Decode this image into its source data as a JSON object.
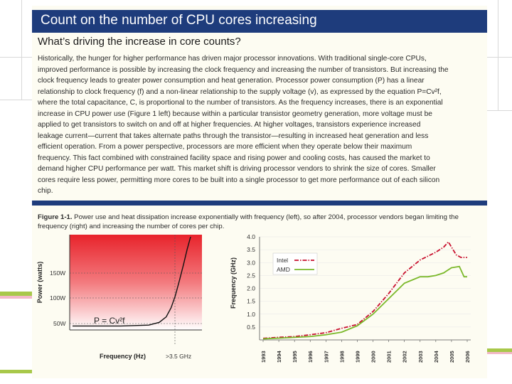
{
  "document": {
    "title": "Count on the number of CPU cores increasing",
    "subtitle": "What’s driving the increase in core counts?",
    "paragraph_lines": [
      "Historically, the hunger for higher performance has driven major processor innovations. With traditional single-core CPUs,",
      "improved performance is possible by increasing the clock frequency and increasing the number of transistors. But increasing the",
      "clock frequency leads to greater power consumption and heat generation. Processor power consumption (P) has a linear",
      "relationship to clock frequency (f) and a non-linear relationship to the supply voltage (v), as expressed by the equation P=Cv²f,",
      "where the total capacitance, C, is proportional to the number of transistors. As the frequency increases, there is an exponential",
      "increase in CPU power use (Figure 1 left) because within a particular transistor geometry generation, more voltage must be",
      "applied to get transistors to switch on and off at higher frequencies. At higher voltages, transistors experience increased",
      "leakage current—current that takes alternate paths through the transistor—resulting in increased heat generation and less",
      "efficient operation. From a power perspective, processors are more efficient when they operate below their maximum",
      "frequency. This fact combined with constrained facility space and rising power and cooling costs, has caused the market to",
      "demand higher CPU performance per watt. This market shift is driving processor vendors to shrink the size of cores. Smaller",
      "cores require less power, permitting more cores to be built into a single processor to get more performance out of each silicon",
      "chip."
    ],
    "caption_label": "Figure 1-1.",
    "caption_lines": [
      " Power use and heat dissipation increase exponentially with frequency (left), so after 2004, processor vendors began limiting the",
      "frequency (right) and increasing the number of cores per chip."
    ]
  },
  "chart_data": [
    {
      "type": "line",
      "xlabel": "Frequency (Hz)",
      "ylabel": "Power (watts)",
      "y_tick_labels": [
        "150W",
        "100W",
        "50W"
      ],
      "x_annotation": ">3.5 GHz",
      "formula": "P = Cv²f",
      "series": [
        {
          "color": "#111111",
          "x": [
            0,
            0.4,
            0.55,
            0.65,
            0.72,
            0.78,
            0.84,
            0.9,
            0.95,
            1.0
          ],
          "y": [
            0.02,
            0.03,
            0.06,
            0.12,
            0.22,
            0.35,
            0.52,
            0.7,
            0.86,
            1.0
          ]
        }
      ],
      "colors": {
        "gradient_top": "#e8232b",
        "gradient_bottom": "#ffffff"
      }
    },
    {
      "type": "line",
      "xlabel": "",
      "ylabel": "Frequency (GHz)",
      "ylim": [
        0,
        4.0
      ],
      "y_ticks": [
        "0.5",
        "1.0",
        "1.5",
        "2.0",
        "2.5",
        "3.0",
        "3.5",
        "4.0"
      ],
      "x_ticks": [
        "1993",
        "1994",
        "1995",
        "1996",
        "1997",
        "1998",
        "1999",
        "2000",
        "2001",
        "2002",
        "2003",
        "2004",
        "2005",
        "2006"
      ],
      "legend_position": "top-left",
      "series": [
        {
          "name": "Intel",
          "color": "#c8102e",
          "style": "dash-dot",
          "x": [
            1993,
            1994,
            1995,
            1996,
            1997,
            1998,
            1999,
            2000,
            2001,
            2002,
            2003,
            2004,
            2004.5,
            2004.8,
            2005.0,
            2005.3,
            2005.6,
            2006.0
          ],
          "y": [
            0.06,
            0.1,
            0.13,
            0.2,
            0.28,
            0.45,
            0.6,
            1.1,
            1.8,
            2.6,
            3.1,
            3.4,
            3.6,
            3.8,
            3.6,
            3.3,
            3.2,
            3.2
          ]
        },
        {
          "name": "AMD",
          "color": "#7ab829",
          "style": "solid",
          "x": [
            1993,
            1994,
            1995,
            1996,
            1997,
            1998,
            1999,
            2000,
            2001,
            2002,
            2003,
            2003.5,
            2004,
            2004.5,
            2005.0,
            2005.5,
            2005.8,
            2006.0
          ],
          "y": [
            0.04,
            0.07,
            0.1,
            0.13,
            0.2,
            0.3,
            0.55,
            1.0,
            1.6,
            2.2,
            2.45,
            2.45,
            2.5,
            2.6,
            2.8,
            2.85,
            2.45,
            2.45
          ]
        }
      ]
    }
  ]
}
